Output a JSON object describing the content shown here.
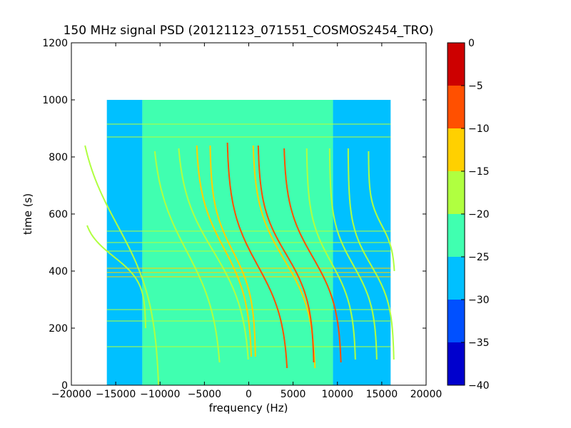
{
  "chart_data": {
    "type": "heatmap",
    "title": "150 MHz signal PSD (20121123_071551_COSMOS2454_TRO)",
    "xlabel": "frequency (Hz)",
    "ylabel": "time (s)",
    "xlim": [
      -20000,
      20000
    ],
    "ylim": [
      0,
      1200
    ],
    "xticks": [
      -20000,
      -15000,
      -10000,
      -5000,
      0,
      5000,
      10000,
      15000,
      20000
    ],
    "yticks": [
      0,
      200,
      400,
      600,
      800,
      1000,
      1200
    ],
    "data_extent": {
      "x": [
        -16000,
        16000
      ],
      "y": [
        0,
        1000
      ]
    },
    "colorbar": {
      "ticks": [
        0,
        -5,
        -10,
        -15,
        -20,
        -25,
        -30,
        -35,
        -40
      ],
      "range": [
        -40,
        0
      ],
      "levels": [
        {
          "from": -40,
          "to": -35,
          "color": "#0000cd"
        },
        {
          "from": -35,
          "to": -30,
          "color": "#0050ff"
        },
        {
          "from": -30,
          "to": -25,
          "color": "#00c0ff"
        },
        {
          "from": -25,
          "to": -20,
          "color": "#40ffb0"
        },
        {
          "from": -20,
          "to": -15,
          "color": "#b0ff40"
        },
        {
          "from": -15,
          "to": -10,
          "color": "#ffd000"
        },
        {
          "from": -10,
          "to": -5,
          "color": "#ff5000"
        },
        {
          "from": -5,
          "to": 0,
          "color": "#cd0000"
        }
      ]
    },
    "background_regions": [
      {
        "x": [
          -16000,
          -12000
        ],
        "level": -25
      },
      {
        "x": [
          -12000,
          9500
        ],
        "level": -22.5
      },
      {
        "x": [
          9500,
          16000
        ],
        "level": -27.5
      }
    ],
    "horizontal_lines": [
      {
        "y": 135,
        "level": -15
      },
      {
        "y": 225,
        "level": -15
      },
      {
        "y": 265,
        "level": -15
      },
      {
        "y": 380,
        "level": -10
      },
      {
        "y": 395,
        "level": -10
      },
      {
        "y": 410,
        "level": -10
      },
      {
        "y": 470,
        "level": -15
      },
      {
        "y": 500,
        "level": -15
      },
      {
        "y": 540,
        "level": -15
      },
      {
        "y": 870,
        "level": -15
      },
      {
        "y": 915,
        "level": -15
      }
    ],
    "tracks": [
      {
        "f_center": -14800,
        "t_center": 560,
        "half_span": 4800,
        "k": 280,
        "t_start": 0,
        "t_end": 840,
        "level": -15
      },
      {
        "f_center": -15200,
        "t_center": 450,
        "half_span": 3600,
        "k": 90,
        "t_start": 200,
        "t_end": 560,
        "level": -15
      },
      {
        "f_center": -7000,
        "t_center": 470,
        "half_span": 4000,
        "k": 240,
        "t_start": 80,
        "t_end": 820,
        "level": -15
      },
      {
        "f_center": -4000,
        "t_center": 470,
        "half_span": 4200,
        "k": 220,
        "t_start": 90,
        "t_end": 830,
        "level": -15
      },
      {
        "f_center": -2800,
        "t_center": 480,
        "half_span": 3200,
        "k": 190,
        "t_start": 100,
        "t_end": 840,
        "level": -10
      },
      {
        "f_center": -1800,
        "t_center": 470,
        "half_span": 2600,
        "k": 160,
        "t_start": 100,
        "t_end": 840,
        "level": -10
      },
      {
        "f_center": 1000,
        "t_center": 420,
        "half_span": 3500,
        "k": 200,
        "t_start": 60,
        "t_end": 850,
        "level": -5
      },
      {
        "f_center": 4000,
        "t_center": 440,
        "half_span": 3600,
        "k": 190,
        "t_start": 60,
        "t_end": 840,
        "level": -10
      },
      {
        "f_center": 4200,
        "t_center": 460,
        "half_span": 3200,
        "k": 170,
        "t_start": 80,
        "t_end": 840,
        "level": -5
      },
      {
        "f_center": 7200,
        "t_center": 450,
        "half_span": 3300,
        "k": 180,
        "t_start": 80,
        "t_end": 830,
        "level": -5
      },
      {
        "f_center": 9300,
        "t_center": 430,
        "half_span": 2800,
        "k": 160,
        "t_start": 90,
        "t_end": 830,
        "level": -15
      },
      {
        "f_center": 11800,
        "t_center": 420,
        "half_span": 2700,
        "k": 150,
        "t_start": 90,
        "t_end": 830,
        "level": -15
      },
      {
        "f_center": 13800,
        "t_center": 420,
        "half_span": 2600,
        "k": 140,
        "t_start": 90,
        "t_end": 830,
        "level": -15
      },
      {
        "f_center": 15000,
        "t_center": 560,
        "half_span": 1500,
        "k": 90,
        "t_start": 400,
        "t_end": 820,
        "level": -15
      }
    ]
  }
}
